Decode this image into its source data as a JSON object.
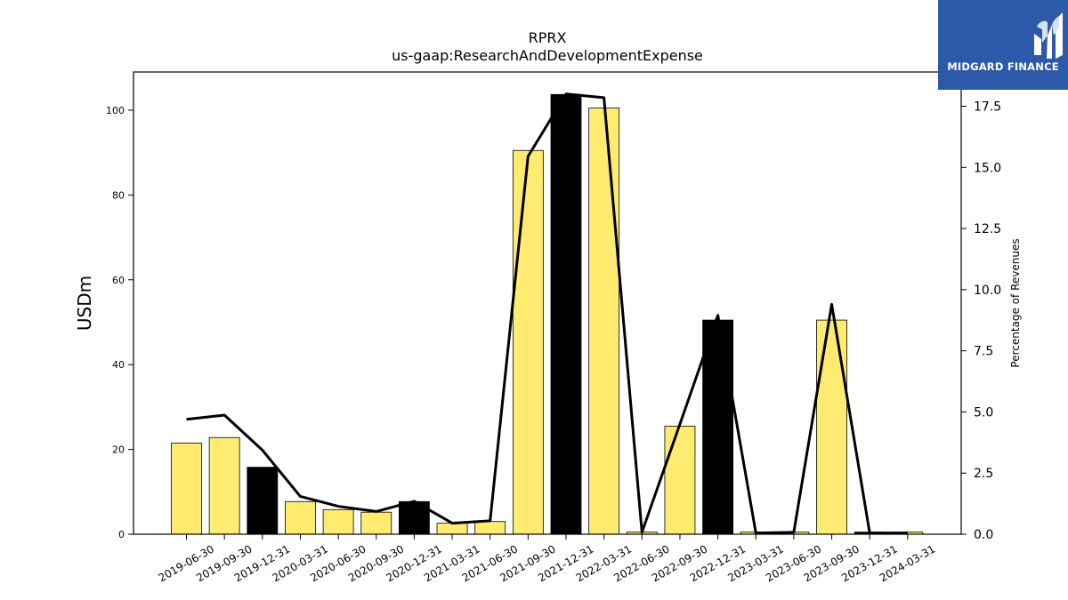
{
  "brand": {
    "name": "MIDGARD FINANCE",
    "bg_color": "#2d5aa8",
    "icon": "midgard-logo-icon"
  },
  "chart_data": {
    "type": "bar",
    "title": "RPRX",
    "subtitle": "us-gaap:ResearchAndDevelopmentExpense",
    "ylabel": "USDm",
    "y2label": "Percentage of Revenues",
    "ylim": [
      0,
      109
    ],
    "y2lim": [
      0,
      18.9
    ],
    "yticks": [
      "0",
      "20",
      "40",
      "60",
      "80",
      "100"
    ],
    "y2ticks": [
      "0.0",
      "2.5",
      "5.0",
      "7.5",
      "10.0",
      "12.5",
      "15.0",
      "17.5"
    ],
    "categories": [
      "2019-06-30",
      "2019-09-30",
      "2019-12-31",
      "2020-03-31",
      "2020-06-30",
      "2020-09-30",
      "2020-12-31",
      "2021-03-31",
      "2021-06-30",
      "2021-09-30",
      "2021-12-31",
      "2022-03-31",
      "2022-06-30",
      "2022-09-30",
      "2022-12-31",
      "2023-03-31",
      "2023-06-30",
      "2023-09-30",
      "2023-12-31",
      "2024-03-31"
    ],
    "series": [
      {
        "type": "bar",
        "values": [
          21.5,
          22.8,
          15.8,
          7.7,
          5.8,
          5.2,
          7.7,
          2.6,
          3.0,
          90.5,
          103.7,
          100.5,
          0.5,
          25.5,
          50.5,
          0.5,
          0.5,
          50.5,
          0.5,
          0.5
        ],
        "highlight": [
          false,
          false,
          true,
          false,
          false,
          false,
          true,
          false,
          false,
          false,
          true,
          false,
          false,
          false,
          true,
          false,
          false,
          false,
          true,
          false
        ]
      },
      {
        "type": "line",
        "axis": "right",
        "values": [
          4.7,
          4.87,
          3.44,
          1.55,
          1.14,
          0.93,
          1.35,
          0.45,
          0.55,
          15.45,
          18.0,
          17.85,
          0.08,
          4.5,
          8.95,
          0.05,
          0.08,
          9.4,
          0.05,
          0.05
        ]
      }
    ],
    "colors": {
      "bar": "#ffeb70",
      "bar_highlight": "#000000",
      "line": "#000000"
    },
    "grid": false
  }
}
